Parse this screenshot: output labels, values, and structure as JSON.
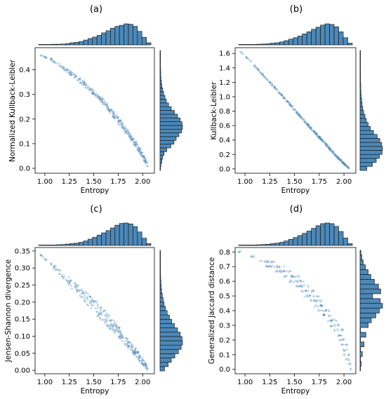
{
  "chart_data": [
    {
      "panel": "(a)",
      "type": "scatter",
      "xlabel": "Entropy",
      "ylabel": "Normalized Kullback-Leibler",
      "xlim": [
        0.9,
        2.12
      ],
      "ylim": [
        -0.02,
        0.49
      ],
      "xticks": [
        1.0,
        1.25,
        1.5,
        1.75,
        2.0
      ],
      "xtick_labels": [
        "1.00",
        "1.25",
        "1.50",
        "1.75",
        "2.00"
      ],
      "yticks": [
        0.0,
        0.1,
        0.2,
        0.3,
        0.4
      ],
      "ytick_labels": [
        "0.0",
        "0.1",
        "0.2",
        "0.3",
        "0.4"
      ],
      "trend": [
        [
          0.95,
          0.46
        ],
        [
          1.05,
          0.445
        ],
        [
          1.15,
          0.42
        ],
        [
          1.25,
          0.39
        ],
        [
          1.35,
          0.36
        ],
        [
          1.45,
          0.325
        ],
        [
          1.55,
          0.29
        ],
        [
          1.65,
          0.245
        ],
        [
          1.75,
          0.195
        ],
        [
          1.85,
          0.145
        ],
        [
          1.95,
          0.085
        ],
        [
          2.05,
          0.015
        ]
      ],
      "band": [
        0.0,
        0.004,
        0.006,
        0.008,
        0.01,
        0.01,
        0.01,
        0.012,
        0.014,
        0.014,
        0.012,
        0.008
      ],
      "top_hist": [
        0.01,
        0.01,
        0.02,
        0.03,
        0.03,
        0.04,
        0.06,
        0.1,
        0.12,
        0.16,
        0.23,
        0.3,
        0.37,
        0.45,
        0.57,
        0.67,
        0.79,
        0.88,
        0.93,
        1.0,
        0.98,
        0.88,
        0.64,
        0.36,
        0.1
      ],
      "right_hist": [
        0.02,
        0.04,
        0.08,
        0.12,
        0.18,
        0.3,
        0.48,
        0.62,
        0.72,
        0.84,
        0.96,
        1.0,
        0.98,
        0.9,
        0.78,
        0.64,
        0.5,
        0.38,
        0.28,
        0.22,
        0.16,
        0.12,
        0.08,
        0.06,
        0.04,
        0.03,
        0.03,
        0.02,
        0.02,
        0.02,
        0.02,
        0.01
      ]
    },
    {
      "panel": "(b)",
      "type": "scatter",
      "xlabel": "Entropy",
      "ylabel": "Kullback-Leibler",
      "xlim": [
        0.9,
        2.12
      ],
      "ylim": [
        -0.06,
        1.68
      ],
      "xticks": [
        1.0,
        1.25,
        1.5,
        1.75,
        2.0
      ],
      "xtick_labels": [
        "1.00",
        "1.25",
        "1.50",
        "1.75",
        "2.00"
      ],
      "yticks": [
        0.0,
        0.2,
        0.4,
        0.6,
        0.8,
        1.0,
        1.2,
        1.4,
        1.6
      ],
      "ytick_labels": [
        "0.0",
        "0.2",
        "0.4",
        "0.6",
        "0.8",
        "1.0",
        "1.2",
        "1.4",
        "1.6"
      ],
      "trend": [
        [
          0.95,
          1.63
        ],
        [
          1.05,
          1.5
        ],
        [
          1.15,
          1.35
        ],
        [
          1.25,
          1.2
        ],
        [
          1.35,
          1.05
        ],
        [
          1.45,
          0.9
        ],
        [
          1.55,
          0.74
        ],
        [
          1.65,
          0.59
        ],
        [
          1.75,
          0.44
        ],
        [
          1.85,
          0.29
        ],
        [
          1.95,
          0.14
        ],
        [
          2.05,
          0.01
        ]
      ],
      "band": [
        0.0,
        0.005,
        0.008,
        0.01,
        0.012,
        0.012,
        0.014,
        0.015,
        0.016,
        0.016,
        0.015,
        0.01
      ],
      "top_hist": [
        0.01,
        0.01,
        0.02,
        0.02,
        0.03,
        0.04,
        0.05,
        0.08,
        0.1,
        0.14,
        0.2,
        0.27,
        0.34,
        0.42,
        0.52,
        0.62,
        0.74,
        0.84,
        0.94,
        1.0,
        0.97,
        0.86,
        0.62,
        0.34,
        0.08
      ],
      "right_hist": [
        0.3,
        0.55,
        0.72,
        0.86,
        0.98,
        1.0,
        0.96,
        0.88,
        0.76,
        0.6,
        0.46,
        0.36,
        0.28,
        0.22,
        0.16,
        0.12,
        0.09,
        0.07,
        0.05,
        0.04,
        0.03,
        0.03,
        0.02,
        0.02,
        0.02,
        0.01,
        0.01,
        0.01,
        0.01,
        0.01
      ]
    },
    {
      "panel": "(c)",
      "type": "scatter",
      "xlabel": "Entropy",
      "ylabel": "Jensen-Shannon divergence",
      "xlim": [
        0.9,
        2.12
      ],
      "ylim": [
        -0.01,
        0.36
      ],
      "xticks": [
        1.0,
        1.25,
        1.5,
        1.75,
        2.0
      ],
      "xtick_labels": [
        "1.00",
        "1.25",
        "1.50",
        "1.75",
        "2.00"
      ],
      "yticks": [
        0.0,
        0.05,
        0.1,
        0.15,
        0.2,
        0.25,
        0.3,
        0.35
      ],
      "ytick_labels": [
        "0.00",
        "0.05",
        "0.10",
        "0.15",
        "0.20",
        "0.25",
        "0.30",
        "0.35"
      ],
      "trend": [
        [
          0.95,
          0.34
        ],
        [
          1.05,
          0.315
        ],
        [
          1.15,
          0.29
        ],
        [
          1.25,
          0.26
        ],
        [
          1.35,
          0.235
        ],
        [
          1.45,
          0.205
        ],
        [
          1.55,
          0.175
        ],
        [
          1.65,
          0.145
        ],
        [
          1.75,
          0.115
        ],
        [
          1.85,
          0.08
        ],
        [
          1.95,
          0.045
        ],
        [
          2.05,
          0.005
        ]
      ],
      "band": [
        0.0,
        0.004,
        0.008,
        0.012,
        0.016,
        0.018,
        0.02,
        0.02,
        0.018,
        0.015,
        0.012,
        0.006
      ],
      "top_hist": [
        0.01,
        0.01,
        0.02,
        0.02,
        0.03,
        0.04,
        0.06,
        0.08,
        0.1,
        0.14,
        0.2,
        0.28,
        0.36,
        0.46,
        0.56,
        0.66,
        0.78,
        0.9,
        0.98,
        1.0,
        0.96,
        0.84,
        0.6,
        0.32,
        0.08
      ],
      "right_hist": [
        0.2,
        0.36,
        0.5,
        0.66,
        0.82,
        0.94,
        1.0,
        0.98,
        0.9,
        0.78,
        0.64,
        0.52,
        0.42,
        0.32,
        0.24,
        0.18,
        0.14,
        0.1,
        0.07,
        0.05,
        0.04,
        0.03,
        0.02,
        0.02,
        0.02,
        0.01,
        0.01,
        0.01
      ]
    },
    {
      "panel": "(d)",
      "type": "scatter",
      "xlabel": "Entropy",
      "ylabel": "Generalized Jaccard distance",
      "xlim": [
        0.9,
        2.12
      ],
      "ylim": [
        -0.03,
        0.83
      ],
      "xticks": [
        1.0,
        1.25,
        1.5,
        1.75,
        2.0
      ],
      "xtick_labels": [
        "1.00",
        "1.25",
        "1.50",
        "1.75",
        "2.00"
      ],
      "yticks": [
        0.0,
        0.1,
        0.2,
        0.3,
        0.4,
        0.5,
        0.6,
        0.7,
        0.8
      ],
      "ytick_labels": [
        "0.0",
        "0.1",
        "0.2",
        "0.3",
        "0.4",
        "0.5",
        "0.6",
        "0.7",
        "0.8"
      ],
      "stripes": [
        {
          "y": 0.8,
          "x": [
            0.93,
            0.97
          ]
        },
        {
          "y": 0.767,
          "x": [
            1.05,
            1.1
          ]
        },
        {
          "y": 0.733,
          "x": [
            1.15,
            1.3
          ]
        },
        {
          "y": 0.7,
          "x": [
            1.2,
            1.4
          ]
        },
        {
          "y": 0.667,
          "x": [
            1.3,
            1.48
          ]
        },
        {
          "y": 0.633,
          "x": [
            1.38,
            1.55
          ]
        },
        {
          "y": 0.6,
          "x": [
            1.45,
            1.6
          ]
        },
        {
          "y": 0.567,
          "x": [
            1.5,
            1.65
          ]
        },
        {
          "y": 0.533,
          "x": [
            1.55,
            1.7
          ]
        },
        {
          "y": 0.5,
          "x": [
            1.6,
            1.75
          ]
        },
        {
          "y": 0.467,
          "x": [
            1.65,
            1.78
          ]
        },
        {
          "y": 0.433,
          "x": [
            1.7,
            1.82
          ]
        },
        {
          "y": 0.4,
          "x": [
            1.74,
            1.86
          ]
        },
        {
          "y": 0.367,
          "x": [
            1.78,
            1.9
          ]
        },
        {
          "y": 0.333,
          "x": [
            1.82,
            1.93
          ]
        },
        {
          "y": 0.3,
          "x": [
            1.86,
            1.96
          ]
        },
        {
          "y": 0.267,
          "x": [
            1.9,
            1.99
          ]
        },
        {
          "y": 0.233,
          "x": [
            1.93,
            2.0
          ]
        },
        {
          "y": 0.2,
          "x": [
            1.95,
            2.02
          ]
        },
        {
          "y": 0.167,
          "x": [
            1.97,
            2.04
          ]
        },
        {
          "y": 0.133,
          "x": [
            1.99,
            2.05
          ]
        },
        {
          "y": 0.1,
          "x": [
            2.0,
            2.06
          ]
        },
        {
          "y": 0.067,
          "x": [
            2.02,
            2.07
          ]
        },
        {
          "y": 0.033,
          "x": [
            2.04,
            2.07
          ]
        },
        {
          "y": 0.0,
          "x": [
            2.06,
            2.08
          ]
        }
      ],
      "top_hist": [
        0.01,
        0.01,
        0.02,
        0.02,
        0.03,
        0.04,
        0.05,
        0.08,
        0.1,
        0.14,
        0.2,
        0.27,
        0.35,
        0.44,
        0.54,
        0.64,
        0.76,
        0.88,
        0.97,
        1.0,
        0.97,
        0.85,
        0.62,
        0.33,
        0.08
      ],
      "right_hist": [
        0.0,
        0.05,
        0.0,
        0.1,
        0.0,
        0.18,
        0.0,
        0.26,
        0.0,
        0.36,
        0.5,
        0.7,
        0.86,
        1.0,
        0.9,
        0.56,
        0.92,
        0.82,
        0.64,
        0.48,
        0.36,
        0.24,
        0.14,
        0.08,
        0.04
      ]
    }
  ],
  "style": {
    "marker_color": "#4a86b8",
    "bar_fill": "#4c88b8",
    "bar_edge": "#1c1c1c"
  }
}
